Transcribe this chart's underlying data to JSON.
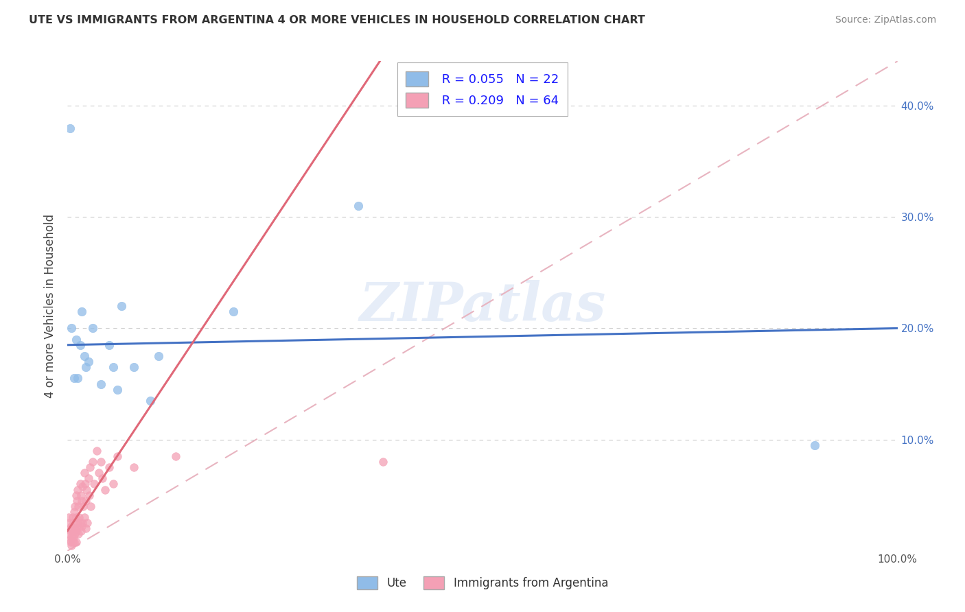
{
  "title": "UTE VS IMMIGRANTS FROM ARGENTINA 4 OR MORE VEHICLES IN HOUSEHOLD CORRELATION CHART",
  "source": "Source: ZipAtlas.com",
  "ylabel": "4 or more Vehicles in Household",
  "legend_label1": "Ute",
  "legend_label2": "Immigrants from Argentina",
  "R1": 0.055,
  "N1": 22,
  "R2": 0.209,
  "N2": 64,
  "color1": "#90bce8",
  "color2": "#f4a0b5",
  "line_color1": "#4472c4",
  "line_color2": "#e06878",
  "trend_line_color": "#e8b4c0",
  "xlim": [
    0,
    1.0
  ],
  "ylim": [
    0,
    0.44
  ],
  "xtick_positions": [
    0.0,
    1.0
  ],
  "xtick_labels": [
    "0.0%",
    "100.0%"
  ],
  "ytick_positions": [
    0.1,
    0.2,
    0.3,
    0.4
  ],
  "ytick_labels": [
    "10.0%",
    "20.0%",
    "30.0%",
    "40.0%"
  ],
  "ute_x": [
    0.003,
    0.005,
    0.008,
    0.01,
    0.012,
    0.015,
    0.017,
    0.02,
    0.022,
    0.025,
    0.03,
    0.04,
    0.05,
    0.055,
    0.06,
    0.065,
    0.08,
    0.1,
    0.11,
    0.2,
    0.35,
    0.9
  ],
  "ute_y": [
    0.38,
    0.2,
    0.155,
    0.19,
    0.155,
    0.185,
    0.215,
    0.175,
    0.165,
    0.17,
    0.2,
    0.15,
    0.185,
    0.165,
    0.145,
    0.22,
    0.165,
    0.135,
    0.175,
    0.215,
    0.31,
    0.095
  ],
  "arg_x": [
    0.001,
    0.002,
    0.002,
    0.003,
    0.003,
    0.004,
    0.004,
    0.005,
    0.005,
    0.005,
    0.006,
    0.006,
    0.006,
    0.007,
    0.007,
    0.008,
    0.008,
    0.008,
    0.009,
    0.009,
    0.01,
    0.01,
    0.01,
    0.01,
    0.011,
    0.011,
    0.012,
    0.012,
    0.013,
    0.013,
    0.014,
    0.015,
    0.015,
    0.016,
    0.016,
    0.017,
    0.017,
    0.018,
    0.018,
    0.019,
    0.02,
    0.02,
    0.021,
    0.022,
    0.022,
    0.023,
    0.024,
    0.025,
    0.026,
    0.027,
    0.028,
    0.03,
    0.032,
    0.035,
    0.038,
    0.04,
    0.042,
    0.045,
    0.05,
    0.055,
    0.06,
    0.08,
    0.13,
    0.38
  ],
  "arg_y": [
    0.03,
    0.025,
    0.015,
    0.02,
    0.01,
    0.018,
    0.008,
    0.022,
    0.012,
    0.005,
    0.03,
    0.018,
    0.008,
    0.025,
    0.012,
    0.035,
    0.02,
    0.008,
    0.04,
    0.015,
    0.05,
    0.03,
    0.018,
    0.008,
    0.045,
    0.02,
    0.055,
    0.025,
    0.04,
    0.015,
    0.03,
    0.06,
    0.025,
    0.05,
    0.018,
    0.045,
    0.022,
    0.058,
    0.025,
    0.04,
    0.07,
    0.03,
    0.06,
    0.045,
    0.02,
    0.055,
    0.025,
    0.065,
    0.05,
    0.075,
    0.04,
    0.08,
    0.06,
    0.09,
    0.07,
    0.08,
    0.065,
    0.055,
    0.075,
    0.06,
    0.085,
    0.075,
    0.085,
    0.08
  ],
  "ute_line_x0": 0.0,
  "ute_line_y0": 0.185,
  "ute_line_x1": 1.0,
  "ute_line_y1": 0.2,
  "arg_line_x0": 0.0,
  "arg_line_y0": 0.018,
  "arg_line_x1": 0.14,
  "arg_line_y1": 0.175,
  "watermark_text": "ZIPatlas",
  "background_color": "#ffffff",
  "grid_color": "#cccccc"
}
